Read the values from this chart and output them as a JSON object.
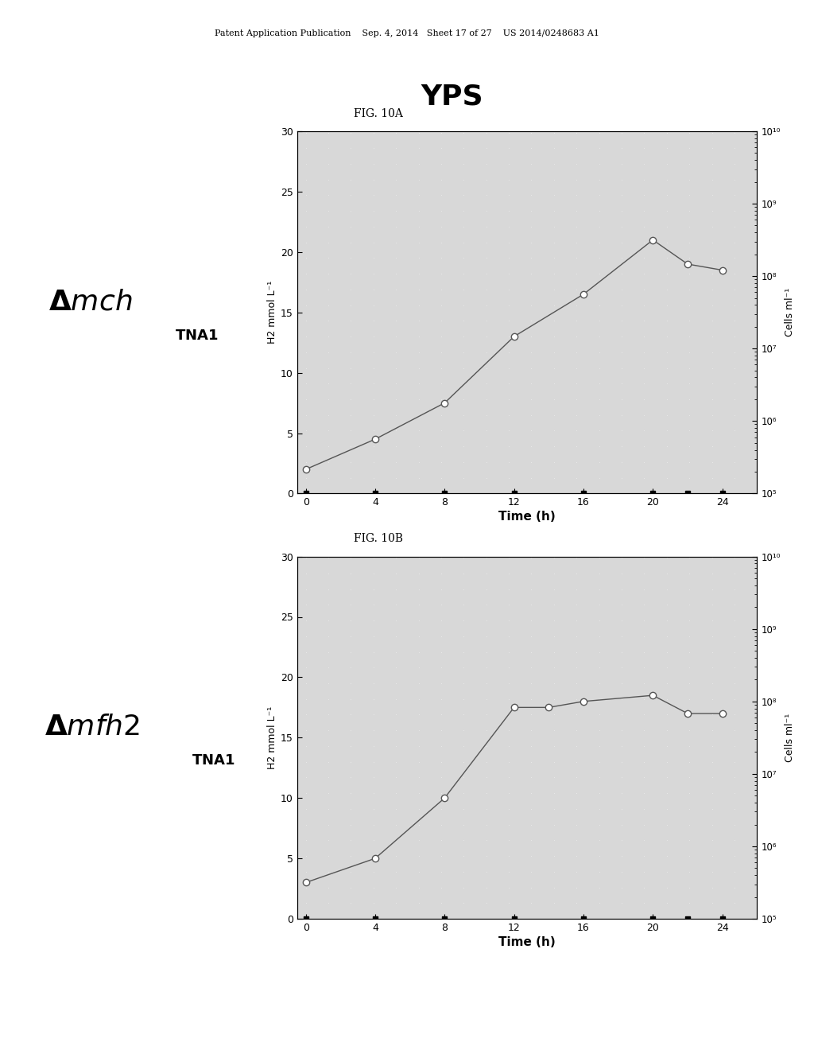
{
  "fig_title_A": "FIG. 10A",
  "fig_title_B": "FIG. 10B",
  "chart_title_A": "YPS",
  "xlabel": "Time (h)",
  "ylabel_left": "H2 mmol L⁻¹",
  "ylabel_right": "Cells ml⁻¹",
  "ylim_left": [
    0,
    30
  ],
  "xlim": [
    -0.5,
    26
  ],
  "xticks": [
    0,
    4,
    8,
    12,
    16,
    20,
    24
  ],
  "yticks_left": [
    0,
    5,
    10,
    15,
    20,
    25,
    30
  ],
  "yticks_right": [
    100000.0,
    1000000.0,
    10000000.0,
    100000000.0,
    1000000000.0,
    10000000000.0
  ],
  "ytick_labels_right": [
    "10⁵",
    "10⁶",
    "10⁷",
    "10⁸",
    "10⁹",
    "10¹⁰"
  ],
  "plot_A": {
    "h2_x": [
      0,
      4,
      8,
      12,
      16,
      20,
      22,
      24
    ],
    "h2_y": [
      2.0,
      4.5,
      7.5,
      13.0,
      16.5,
      21.0,
      19.0,
      18.5
    ],
    "cells_x": [
      0,
      4,
      8,
      12,
      16,
      20,
      22,
      24
    ],
    "cells_y": [
      100000.0,
      100000.0,
      100000.0,
      100000.0,
      100000.0,
      100000.0,
      100000.0,
      100000.0
    ]
  },
  "plot_B": {
    "h2_x": [
      0,
      4,
      8,
      12,
      14,
      16,
      20,
      22,
      24
    ],
    "h2_y": [
      3.0,
      5.0,
      10.0,
      17.5,
      17.5,
      18.0,
      18.5,
      17.0,
      17.0
    ],
    "cells_x": [
      0,
      4,
      8,
      12,
      16,
      20,
      22,
      24
    ],
    "cells_y": [
      100000.0,
      100000.0,
      100000.0,
      100000.0,
      100000.0,
      100000.0,
      100000.0,
      100000.0
    ]
  },
  "line_color": "#555555",
  "filled_square_color": "#000000",
  "bg_color": "#ffffff",
  "plot_bg": "#d8d8d8",
  "header_text": "Patent Application Publication    Sep. 4, 2014   Sheet 17 of 27    US 2014/0248683 A1",
  "label_A_main": "Δmch",
  "label_A_sub": "TNA1",
  "label_B_main": "Δmfh2",
  "label_B_sub": "TNA1"
}
